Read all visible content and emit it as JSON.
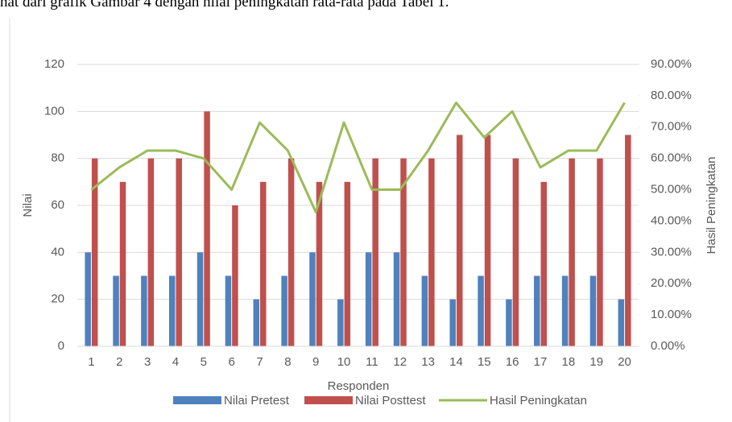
{
  "caption": "hat dari grafik Gambar 4 dengan nilai peningkatan rata-rata pada Tabel 1.",
  "chart_data": {
    "type": "bar",
    "x_label": "Responden",
    "y_label": "Nilai",
    "y2_label": "Hasil Peningkatan",
    "categories": [
      "1",
      "2",
      "3",
      "4",
      "5",
      "6",
      "7",
      "8",
      "9",
      "10",
      "11",
      "12",
      "13",
      "14",
      "15",
      "16",
      "17",
      "18",
      "19",
      "20"
    ],
    "series": [
      {
        "name": "Nilai Pretest",
        "color": "#4f81bd",
        "type": "bar",
        "values": [
          40,
          30,
          30,
          30,
          40,
          30,
          20,
          30,
          40,
          20,
          40,
          40,
          30,
          20,
          30,
          20,
          30,
          30,
          30,
          20
        ]
      },
      {
        "name": "Nilai Posttest",
        "color": "#c0504d",
        "type": "bar",
        "values": [
          80,
          70,
          80,
          80,
          100,
          60,
          70,
          80,
          70,
          70,
          80,
          80,
          80,
          90,
          90,
          80,
          70,
          80,
          80,
          90
        ]
      },
      {
        "name": "Hasil Peningkatan",
        "color": "#9bbb59",
        "type": "line",
        "axis": "y2",
        "values": [
          50,
          57.14,
          62.5,
          62.5,
          60,
          50,
          71.43,
          62.5,
          42.86,
          71.43,
          50,
          50,
          62.5,
          77.78,
          66.67,
          75,
          57.14,
          62.5,
          62.5,
          77.78
        ]
      }
    ],
    "ylim": [
      0,
      120
    ],
    "yticks": [
      0,
      20,
      40,
      60,
      80,
      100,
      120
    ],
    "y2lim": [
      0,
      90
    ],
    "y2ticks": [
      {
        "value": 0,
        "label": "0.00%"
      },
      {
        "value": 10,
        "label": "10.00%"
      },
      {
        "value": 20,
        "label": "20.00%"
      },
      {
        "value": 30,
        "label": "30.00%"
      },
      {
        "value": 40,
        "label": "40.00%"
      },
      {
        "value": 50,
        "label": "50.00%"
      },
      {
        "value": 60,
        "label": "60.00%"
      },
      {
        "value": 70,
        "label": "70.00%"
      },
      {
        "value": 80,
        "label": "80.00%"
      },
      {
        "value": 90,
        "label": "90.00%"
      }
    ],
    "grid": true,
    "legend": "bottom"
  }
}
